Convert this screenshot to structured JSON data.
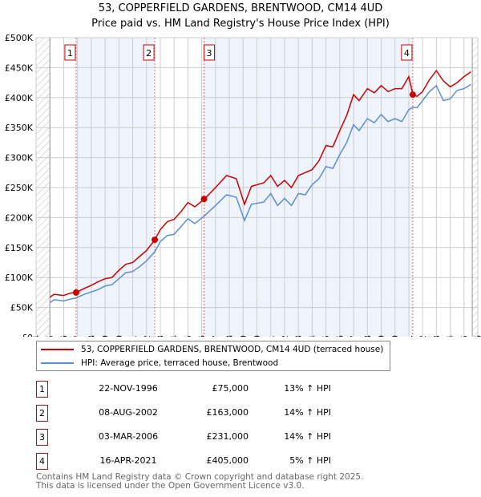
{
  "chart_data": {
    "type": "line",
    "title": "53, COPPERFIELD GARDENS, BRENTWOOD, CM14 4UD",
    "subtitle": "Price paid vs. HM Land Registry's House Price Index (HPI)",
    "xlim": [
      1994,
      2026
    ],
    "ylim": [
      0,
      500000
    ],
    "y_ticks": [
      0,
      50000,
      100000,
      150000,
      200000,
      250000,
      300000,
      350000,
      400000,
      450000,
      500000
    ],
    "y_tick_labels": [
      "£0",
      "£50K",
      "£100K",
      "£150K",
      "£200K",
      "£250K",
      "£300K",
      "£350K",
      "£400K",
      "£450K",
      "£500K"
    ],
    "x_ticks": [
      1994,
      1995,
      1996,
      1997,
      1998,
      1999,
      2000,
      2001,
      2002,
      2003,
      2004,
      2005,
      2006,
      2007,
      2008,
      2009,
      2010,
      2011,
      2012,
      2013,
      2014,
      2015,
      2016,
      2017,
      2018,
      2019,
      2020,
      2021,
      2022,
      2023,
      2024,
      2025,
      2026
    ],
    "grid": true,
    "colors": {
      "property": "#cc0000",
      "hpi": "#5b8fd0",
      "shade": "#eef3fc",
      "marker_box": "#cc0000"
    },
    "series": [
      {
        "name": "53, COPPERFIELD GARDENS, BRENTWOOD, CM14 4UD (terraced house)",
        "x": [
          1995,
          1995.3,
          1996,
          1996.5,
          1996.9,
          1997.5,
          1998,
          1998.5,
          1999,
          1999.5,
          2000,
          2000.5,
          2001,
          2001.5,
          2002,
          2002.6,
          2003,
          2003.5,
          2004,
          2004.5,
          2005,
          2005.5,
          2006.2,
          2007,
          2007.8,
          2008.5,
          2009.1,
          2009.6,
          2010.5,
          2011,
          2011.5,
          2012,
          2012.5,
          2013,
          2013.5,
          2014,
          2014.5,
          2015,
          2015.5,
          2016,
          2016.5,
          2017,
          2017.4,
          2018,
          2018.5,
          2019,
          2019.5,
          2020,
          2020.5,
          2021,
          2021.3,
          2021.6,
          2022,
          2022.5,
          2023,
          2023.5,
          2024,
          2024.5,
          2025,
          2025.5
        ],
        "values": [
          67000,
          72000,
          70000,
          74000,
          75000,
          82000,
          87000,
          93000,
          98000,
          100000,
          112000,
          122000,
          125000,
          135000,
          145000,
          163000,
          180000,
          193000,
          197000,
          210000,
          225000,
          218000,
          231000,
          250000,
          270000,
          265000,
          222000,
          252000,
          258000,
          270000,
          252000,
          262000,
          250000,
          270000,
          275000,
          280000,
          295000,
          320000,
          318000,
          345000,
          370000,
          405000,
          395000,
          415000,
          408000,
          420000,
          410000,
          415000,
          415000,
          435000,
          405000,
          402000,
          410000,
          430000,
          445000,
          428000,
          418000,
          425000,
          435000,
          443000
        ]
      },
      {
        "name": "HPI: Average price, terraced house, Brentwood",
        "x": [
          1995,
          1995.3,
          1996,
          1996.5,
          1996.9,
          1997.5,
          1998,
          1998.5,
          1999,
          1999.5,
          2000,
          2000.5,
          2001,
          2001.5,
          2002,
          2002.6,
          2003,
          2003.5,
          2004,
          2004.5,
          2005,
          2005.5,
          2006.2,
          2007,
          2007.8,
          2008.5,
          2009.1,
          2009.6,
          2010.5,
          2011,
          2011.5,
          2012,
          2012.5,
          2013,
          2013.5,
          2014,
          2014.5,
          2015,
          2015.5,
          2016,
          2016.5,
          2017,
          2017.4,
          2018,
          2018.5,
          2019,
          2019.5,
          2020,
          2020.5,
          2021,
          2021.3,
          2021.6,
          2022,
          2022.5,
          2023,
          2023.5,
          2024,
          2024.5,
          2025,
          2025.5
        ],
        "values": [
          58000,
          63000,
          61000,
          64000,
          66000,
          72000,
          76000,
          80000,
          86000,
          88000,
          98000,
          108000,
          110000,
          118000,
          128000,
          143000,
          160000,
          170000,
          172000,
          185000,
          198000,
          190000,
          203000,
          220000,
          238000,
          234000,
          195000,
          222000,
          226000,
          240000,
          220000,
          232000,
          220000,
          240000,
          238000,
          255000,
          265000,
          285000,
          282000,
          305000,
          325000,
          355000,
          345000,
          365000,
          358000,
          372000,
          360000,
          365000,
          360000,
          380000,
          384000,
          383000,
          395000,
          410000,
          420000,
          395000,
          398000,
          412000,
          415000,
          422000
        ]
      }
    ],
    "sales": [
      {
        "label": "1",
        "x": 1996.9,
        "value": 75000
      },
      {
        "label": "2",
        "x": 2002.6,
        "value": 163000
      },
      {
        "label": "3",
        "x": 2006.17,
        "value": 231000
      },
      {
        "label": "4",
        "x": 2021.29,
        "value": 405000
      }
    ]
  },
  "legend": {
    "property": "53, COPPERFIELD GARDENS, BRENTWOOD, CM14 4UD (terraced house)",
    "hpi": "HPI: Average price, terraced house, Brentwood"
  },
  "transactions": [
    {
      "num": "1",
      "date": "22-NOV-1996",
      "price": "£75,000",
      "hpi": "13% ↑ HPI"
    },
    {
      "num": "2",
      "date": "08-AUG-2002",
      "price": "£163,000",
      "hpi": "14% ↑ HPI"
    },
    {
      "num": "3",
      "date": "03-MAR-2006",
      "price": "£231,000",
      "hpi": "14% ↑ HPI"
    },
    {
      "num": "4",
      "date": "16-APR-2021",
      "price": "£405,000",
      "hpi": "5% ↑ HPI"
    }
  ],
  "footer": {
    "line1": "Contains HM Land Registry data © Crown copyright and database right 2025.",
    "line2": "This data is licensed under the Open Government Licence v3.0."
  }
}
